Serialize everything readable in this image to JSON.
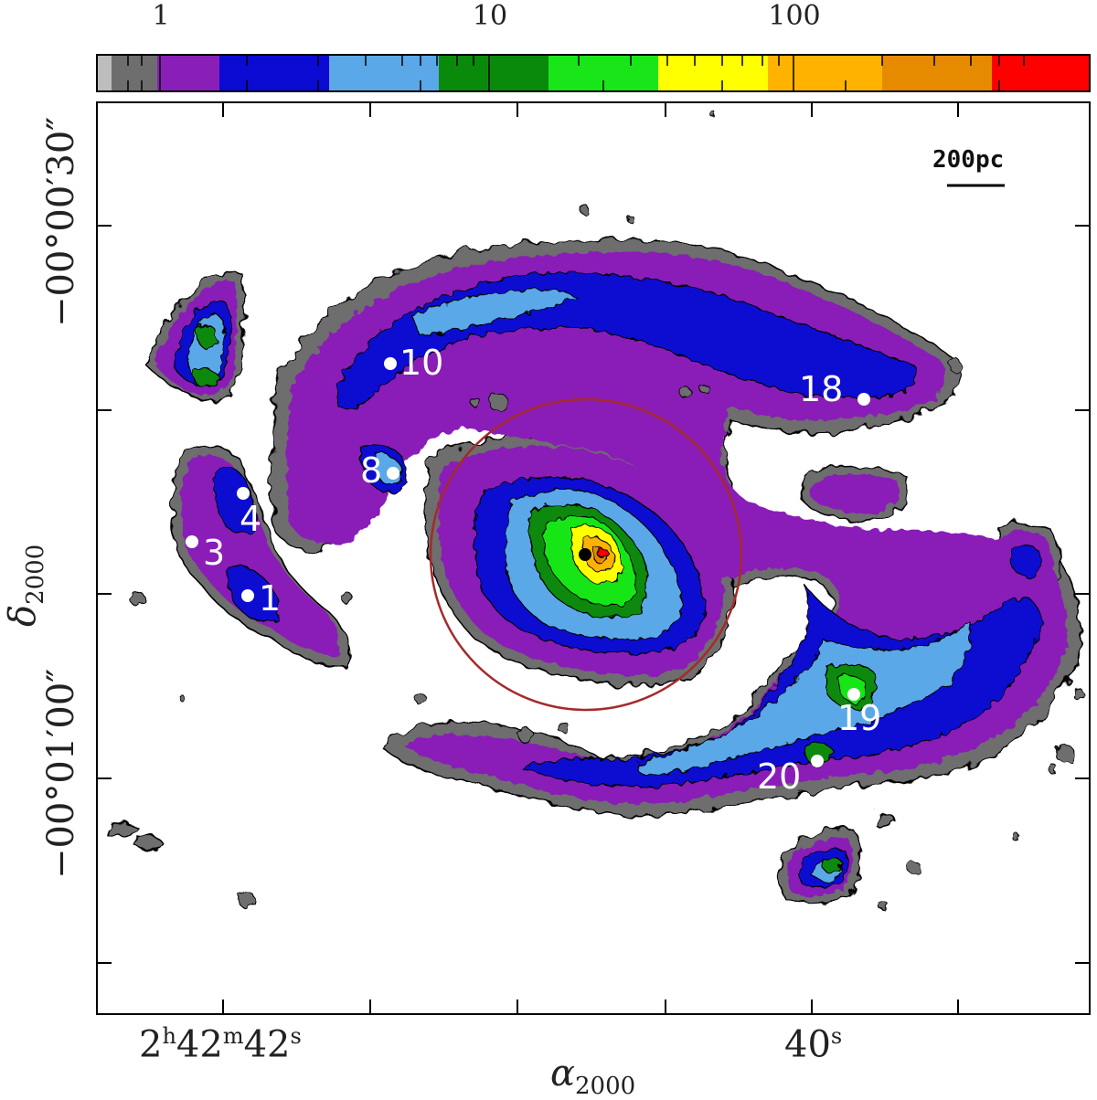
{
  "colorbar": {
    "tick_labels": [
      "1",
      "10",
      "100"
    ],
    "colors": [
      "#6e6e6e",
      "#8a1fb8",
      "#0a0ad2",
      "#5aa8e8",
      "#0a8a0a",
      "#19e619",
      "#ffff00",
      "#ffb300",
      "#e68a00",
      "#ff0000"
    ]
  },
  "axes": {
    "ra_labels": [
      {
        "h": "2",
        "h_unit": "h",
        "m": "42",
        "m_unit": "m",
        "s": "42",
        "s_unit": "s"
      },
      {
        "s": "40",
        "s_unit": "s"
      }
    ],
    "dec_labels": [
      "−00°00′30″",
      "−00°01′00″"
    ],
    "xlabel": {
      "symbol": "α",
      "sub": "2000"
    },
    "ylabel": {
      "symbol": "δ",
      "sub": "2000"
    }
  },
  "scalebar": {
    "label": "200pc"
  },
  "sources": [
    {
      "id": "1"
    },
    {
      "id": "3"
    },
    {
      "id": "4"
    },
    {
      "id": "8"
    },
    {
      "id": "10"
    },
    {
      "id": "18"
    },
    {
      "id": "19"
    },
    {
      "id": "20"
    }
  ],
  "annotations": {
    "circle_color": "#a52a2a",
    "nucleus_marker_color": "#000000"
  }
}
